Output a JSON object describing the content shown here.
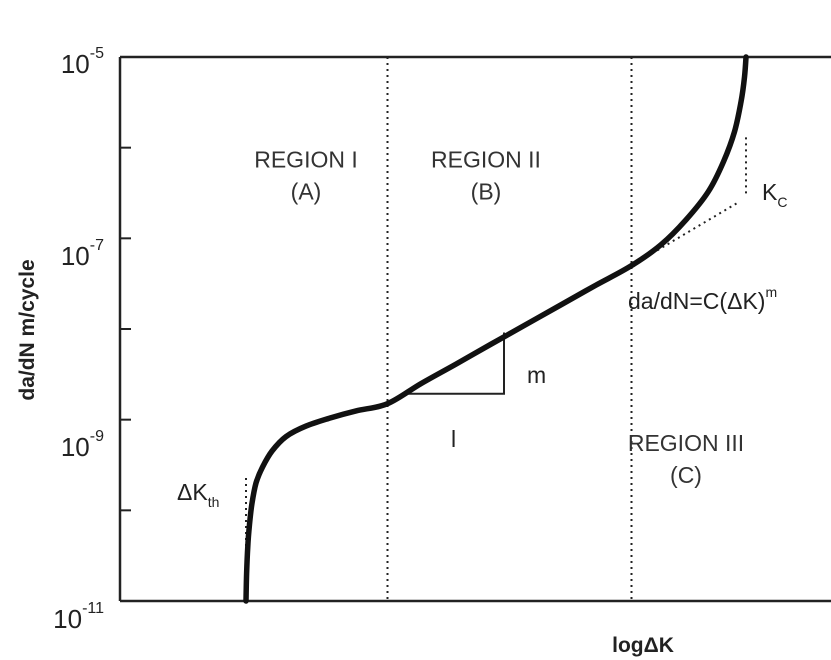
{
  "chart_data": {
    "type": "line",
    "title": "",
    "xlabel": "logΔK",
    "ylabel": "da/dN m/cycle",
    "y_scale": "log",
    "ylim": [
      1e-11,
      1e-05
    ],
    "xlim": [
      0,
      1
    ],
    "y_tick_labels": [
      {
        "base": "10",
        "exp": "-5",
        "value": 1e-05
      },
      {
        "base": "10",
        "exp": "-7",
        "value": 1e-07
      },
      {
        "base": "10",
        "exp": "-9",
        "value": 1e-09
      },
      {
        "base": "10",
        "exp": "-11",
        "value": 1e-11
      }
    ],
    "y_minor_ticks": [
      1e-06,
      1e-08,
      1e-10
    ],
    "region_boundaries_x": [
      0.283,
      0.771
    ],
    "regions": [
      {
        "line1": "REGION I",
        "line2": "(A)",
        "x": 0.12,
        "y": 4e-07
      },
      {
        "line1": "REGION II",
        "line2": "(B)",
        "x": 0.48,
        "y": 4e-07
      },
      {
        "line1": "REGION III",
        "line2": "(C)",
        "x": 0.88,
        "y": 3e-10
      }
    ],
    "series": [
      {
        "x": [
          0.0,
          0.0012,
          0.0035,
          0.007,
          0.012,
          0.02,
          0.033,
          0.052,
          0.08,
          0.12,
          0.17,
          0.22,
          0.283,
          0.35,
          0.42,
          0.49,
          0.56,
          0.63,
          0.7,
          0.771,
          0.83,
          0.88,
          0.925,
          0.955,
          0.977,
          0.99,
          0.997,
          1.0
        ],
        "y": [
          1e-11,
          2e-11,
          4e-11,
          7e-11,
          1.2e-10,
          2e-10,
          3e-10,
          4.5e-10,
          6.5e-10,
          8.5e-10,
          1.05e-09,
          1.25e-09,
          1.5e-09,
          2.5e-09,
          4.1e-09,
          6.8e-09,
          1.12e-08,
          1.85e-08,
          3.05e-08,
          5e-08,
          8.5e-08,
          1.6e-07,
          3.3e-07,
          7e-07,
          1.5e-06,
          3.2e-06,
          6e-06,
          1e-05
        ]
      }
    ],
    "paris_extension": {
      "x": [
        0.771,
        0.985
      ],
      "y": [
        5e-08,
        2.5e-07
      ]
    },
    "slope_triangle": {
      "x_left": 0.155,
      "x_right": 0.525,
      "y_bottom": 1.93e-09,
      "y_top": 9.15e-09,
      "slope_label": "m",
      "run_label": "l"
    },
    "annotations": {
      "dkth": {
        "main": "ΔK",
        "sub": "th"
      },
      "kc": {
        "main": "K",
        "sub": "C"
      },
      "paris_law": {
        "main": "da/dN=C(ΔK)",
        "sup": "m"
      }
    },
    "grid": false,
    "legend": "none"
  }
}
